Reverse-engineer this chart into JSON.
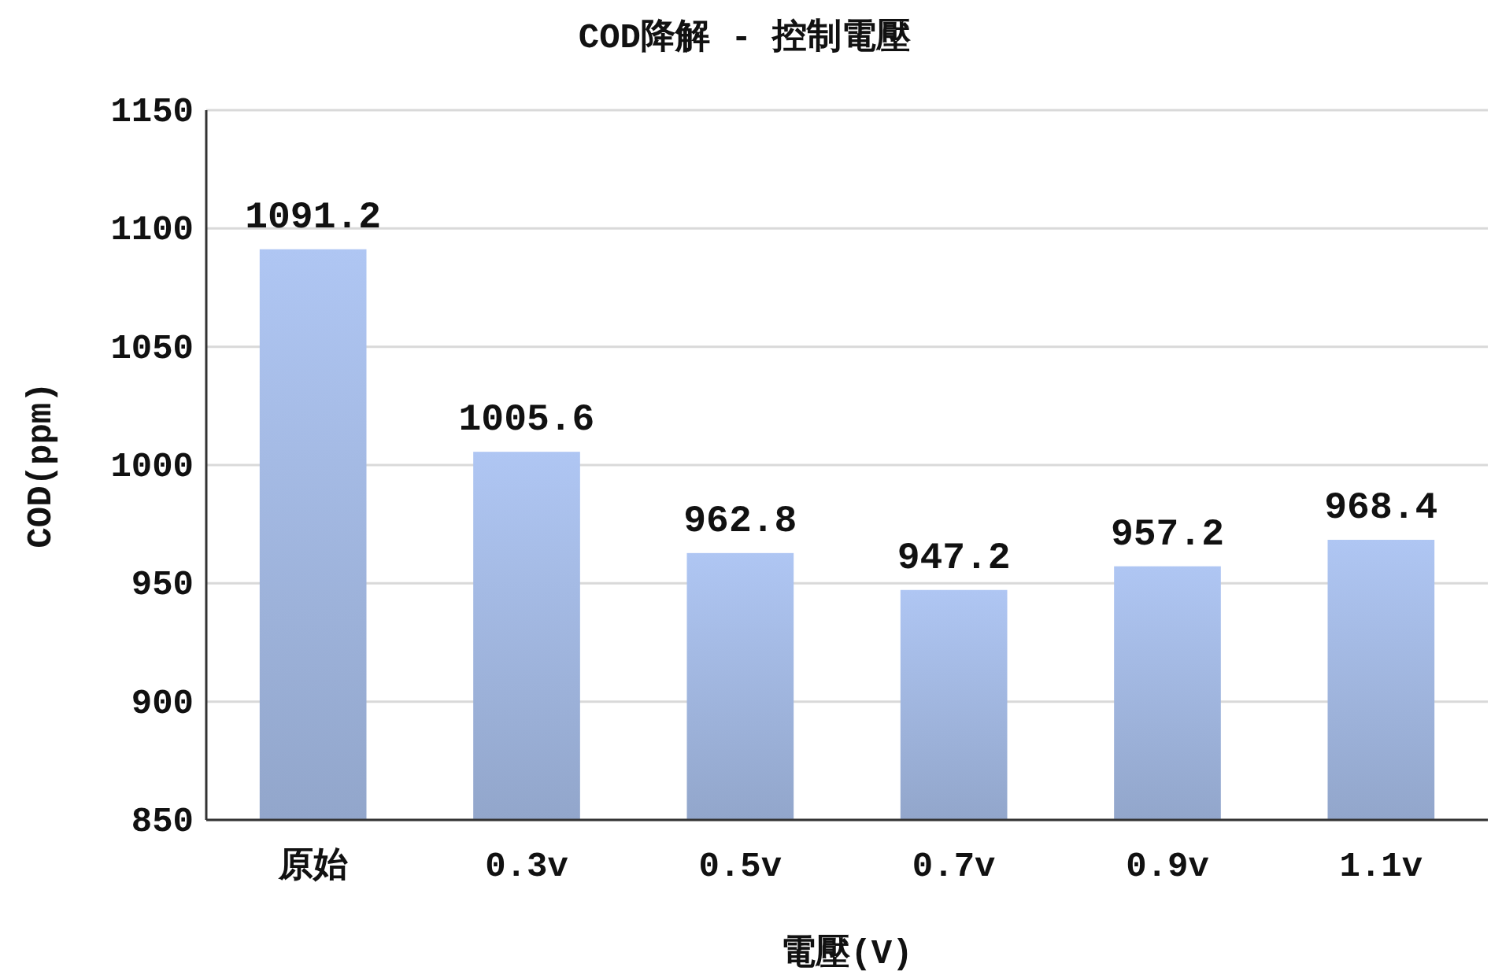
{
  "chart_data": {
    "type": "bar",
    "title": "COD降解 - 控制電壓",
    "xlabel": "電壓(V)",
    "ylabel": "COD(ppm)",
    "categories": [
      "原始",
      "0.3v",
      "0.5v",
      "0.7v",
      "0.9v",
      "1.1v"
    ],
    "values": [
      1091.2,
      1005.6,
      962.8,
      947.2,
      957.2,
      968.4
    ],
    "color": "#9db2da",
    "ylim": [
      850,
      1150
    ],
    "yticks": [
      850,
      900,
      950,
      1000,
      1050,
      1100,
      1150
    ],
    "grid": "y",
    "data_labels": true
  }
}
